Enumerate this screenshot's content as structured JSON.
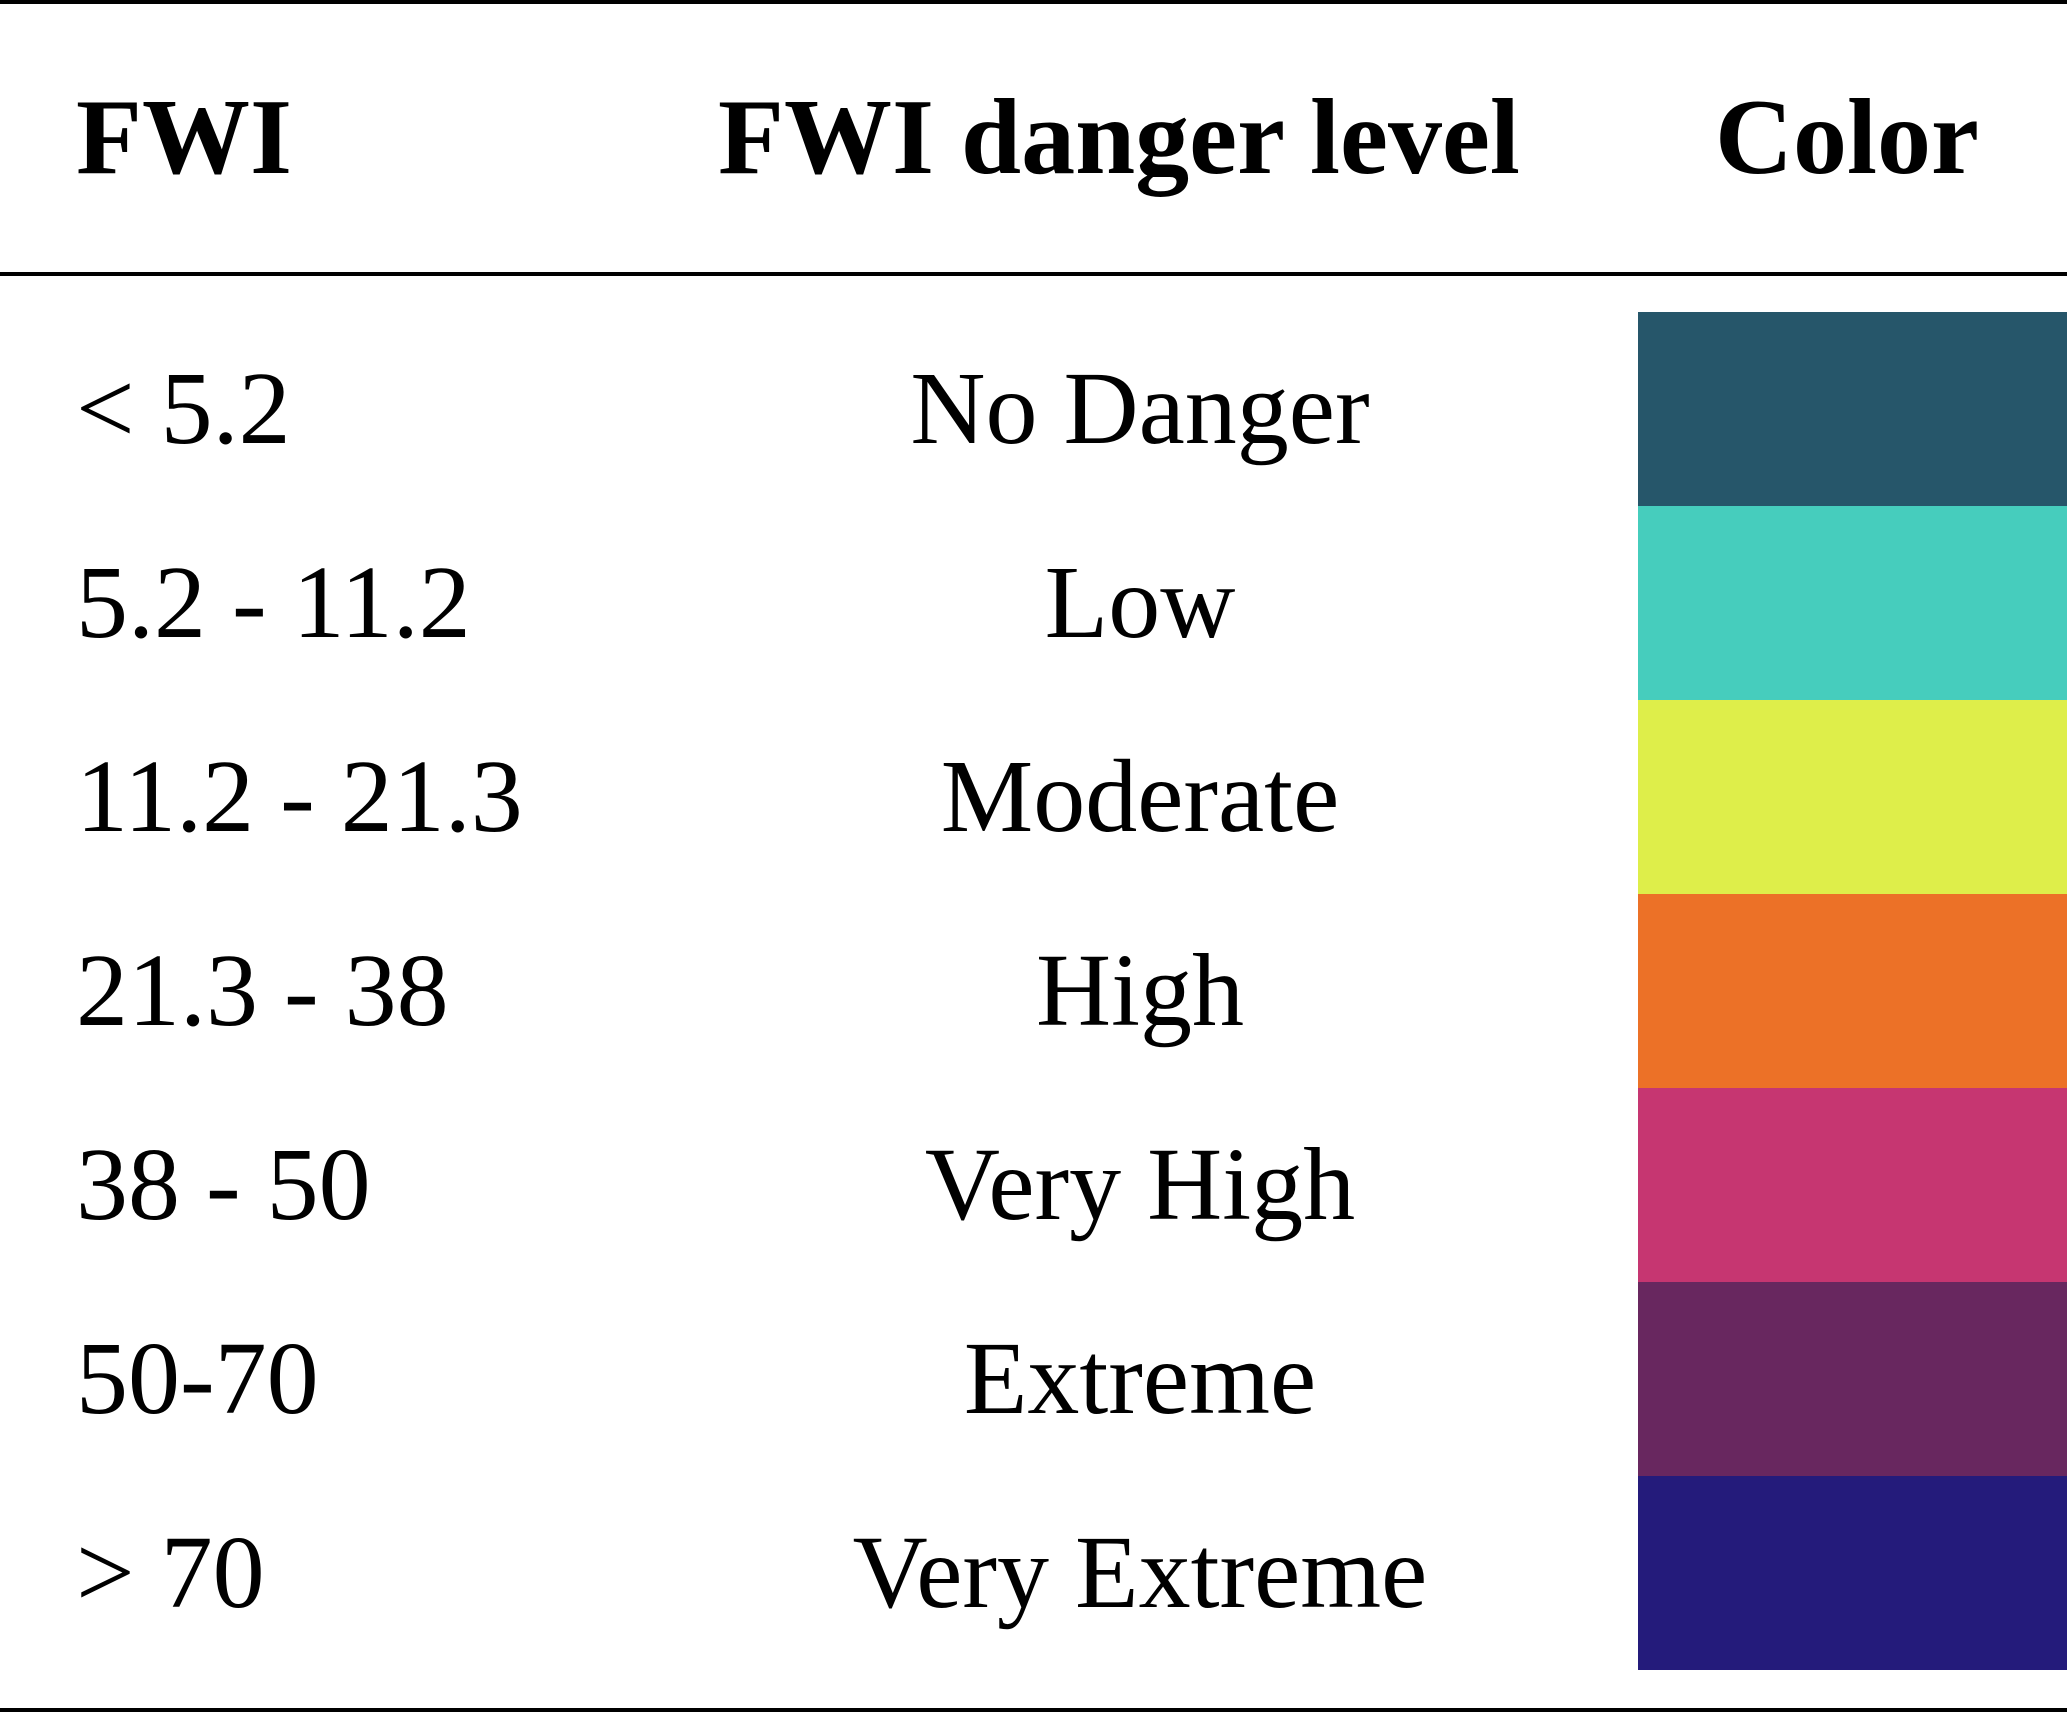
{
  "table": {
    "headers": {
      "fwi": "FWI",
      "level": "FWI danger level",
      "color": "Color"
    },
    "rows": [
      {
        "range": "< 5.2",
        "level": "No Danger",
        "color": "#26566A"
      },
      {
        "range": "5.2 - 11.2",
        "level": "Low",
        "color": "#46CDBD"
      },
      {
        "range": "11.2 - 21.3",
        "level": "Moderate",
        "color": "#DEEE4A"
      },
      {
        "range": "21.3 - 38",
        "level": "High",
        "color": "#EC7127"
      },
      {
        "range": "38 - 50",
        "level": "Very High",
        "color": "#C63671"
      },
      {
        "range": "50-70",
        "level": "Extreme",
        "color": "#68275F"
      },
      {
        "range": "> 70",
        "level": "Very Extreme",
        "color": "#241B7B"
      }
    ]
  }
}
